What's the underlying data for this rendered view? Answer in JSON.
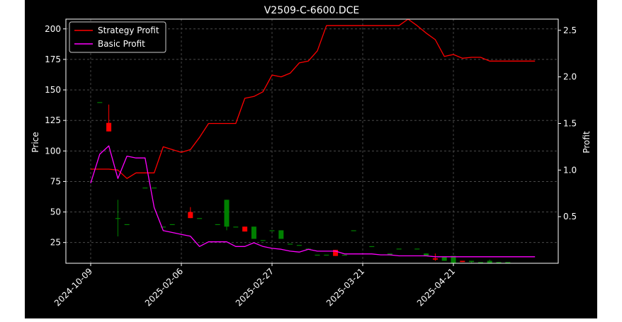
{
  "chart_data": {
    "type": "candlestick+line",
    "title": "V2509-C-6600.DCE",
    "ylabel_left": "Price",
    "ylabel_right": "Profit",
    "ylim_left": [
      8,
      208
    ],
    "ylim_right": [
      0.0,
      2.62
    ],
    "yticks_left": [
      "25",
      "50",
      "75",
      "100",
      "125",
      "150",
      "175",
      "200"
    ],
    "yticks_right": [
      "0.5",
      "1.0",
      "1.5",
      "2.0",
      "2.5"
    ],
    "xticks": [
      {
        "index": 0,
        "label": "2024-10-09"
      },
      {
        "index": 10,
        "label": "2025-02-06"
      },
      {
        "index": 20,
        "label": "2025-02-27"
      },
      {
        "index": 30,
        "label": "2025-03-21"
      },
      {
        "index": 40,
        "label": "2025-04-21"
      }
    ],
    "grid": true,
    "legend_position": "upper-left",
    "colors": {
      "up": "#008000",
      "down": "#ff0000",
      "strategy": "#ff0000",
      "basic": "#ff00ff",
      "grid": "#555555",
      "axis": "#ffffff"
    },
    "candles": [
      [
        1,
        140,
        140,
        140,
        140
      ],
      [
        2,
        123,
        138,
        116,
        116
      ],
      [
        3,
        45,
        60,
        30,
        45
      ],
      [
        4,
        40,
        40,
        40,
        40
      ],
      [
        6,
        70,
        70,
        70,
        70
      ],
      [
        7,
        70,
        70,
        70,
        70
      ],
      [
        8,
        38,
        38,
        38,
        38
      ],
      [
        9,
        40,
        40,
        40,
        40
      ],
      [
        11,
        50,
        54,
        45,
        45
      ],
      [
        12,
        45,
        45,
        45,
        45
      ],
      [
        14,
        40,
        40,
        40,
        40
      ],
      [
        15,
        38,
        60,
        35,
        60
      ],
      [
        16,
        38,
        38,
        38,
        38
      ],
      [
        17,
        38,
        38,
        34,
        34
      ],
      [
        18,
        28,
        38,
        28,
        38
      ],
      [
        19,
        27,
        27,
        27,
        27
      ],
      [
        20,
        35,
        35,
        35,
        35
      ],
      [
        21,
        28,
        35,
        28,
        35
      ],
      [
        22,
        24,
        24,
        24,
        24
      ],
      [
        23,
        23,
        23,
        23,
        23
      ],
      [
        24,
        20,
        20,
        20,
        20
      ],
      [
        25,
        15,
        15,
        15,
        15
      ],
      [
        26,
        15,
        15,
        15,
        15
      ],
      [
        27,
        19,
        19,
        14,
        14
      ],
      [
        28,
        15,
        15,
        15,
        15
      ],
      [
        29,
        35,
        35,
        35,
        35
      ],
      [
        31,
        22,
        22,
        22,
        22
      ],
      [
        33,
        15,
        16,
        15,
        16
      ],
      [
        34,
        20,
        20,
        20,
        20
      ],
      [
        36,
        20,
        20,
        20,
        20
      ],
      [
        37,
        14,
        16,
        14,
        16
      ],
      [
        38,
        12,
        16,
        10,
        11
      ],
      [
        39,
        10,
        13,
        10,
        13
      ],
      [
        40,
        8,
        14,
        8,
        14
      ],
      [
        41,
        10,
        10,
        9,
        9
      ],
      [
        42,
        9,
        10,
        8,
        10
      ],
      [
        43,
        9,
        9,
        9,
        9
      ],
      [
        44,
        8,
        11,
        8,
        10
      ],
      [
        45,
        8,
        9,
        8,
        9
      ],
      [
        46,
        9,
        9,
        9,
        9
      ]
    ],
    "series": [
      {
        "name": "Strategy Profit",
        "x": [
          0,
          1,
          2,
          3,
          4,
          5,
          6,
          7,
          8,
          9,
          10,
          11,
          12,
          13,
          14,
          15,
          16,
          17,
          18,
          19,
          20,
          21,
          22,
          23,
          24,
          25,
          26,
          27,
          28,
          29,
          30,
          31,
          32,
          33,
          34,
          35,
          36,
          37,
          38,
          39,
          40,
          41,
          42,
          43,
          44,
          45,
          46,
          47,
          48,
          49
        ],
        "values": [
          1.01,
          1.01,
          1.01,
          1.0,
          0.91,
          0.97,
          0.97,
          0.97,
          1.25,
          1.22,
          1.19,
          1.22,
          1.35,
          1.5,
          1.5,
          1.5,
          1.5,
          1.77,
          1.79,
          1.84,
          2.02,
          2.0,
          2.04,
          2.15,
          2.17,
          2.28,
          2.55,
          2.55,
          2.55,
          2.55,
          2.55,
          2.55,
          2.55,
          2.55,
          2.55,
          2.62,
          2.55,
          2.47,
          2.4,
          2.22,
          2.24,
          2.2,
          2.21,
          2.21,
          2.17,
          2.17,
          2.17,
          2.17,
          2.17,
          2.17
        ]
      },
      {
        "name": "Basic Profit",
        "x": [
          0,
          1,
          2,
          3,
          4,
          5,
          6,
          7,
          8,
          9,
          10,
          11,
          12,
          13,
          14,
          15,
          16,
          17,
          18,
          19,
          20,
          21,
          22,
          23,
          24,
          25,
          26,
          27,
          28,
          29,
          30,
          31,
          32,
          33,
          34,
          35,
          36,
          37,
          38,
          39,
          40,
          41,
          42,
          43,
          44,
          45,
          46,
          47,
          48,
          49
        ],
        "values": [
          0.86,
          1.17,
          1.26,
          0.91,
          1.15,
          1.13,
          1.13,
          0.6,
          0.35,
          0.33,
          0.31,
          0.29,
          0.18,
          0.23,
          0.23,
          0.23,
          0.18,
          0.18,
          0.22,
          0.18,
          0.16,
          0.15,
          0.13,
          0.12,
          0.15,
          0.13,
          0.13,
          0.13,
          0.1,
          0.1,
          0.1,
          0.1,
          0.09,
          0.09,
          0.08,
          0.08,
          0.08,
          0.08,
          0.07,
          0.07,
          0.07,
          0.07,
          0.07,
          0.07,
          0.07,
          0.07,
          0.07,
          0.07,
          0.07,
          0.07
        ]
      }
    ]
  }
}
